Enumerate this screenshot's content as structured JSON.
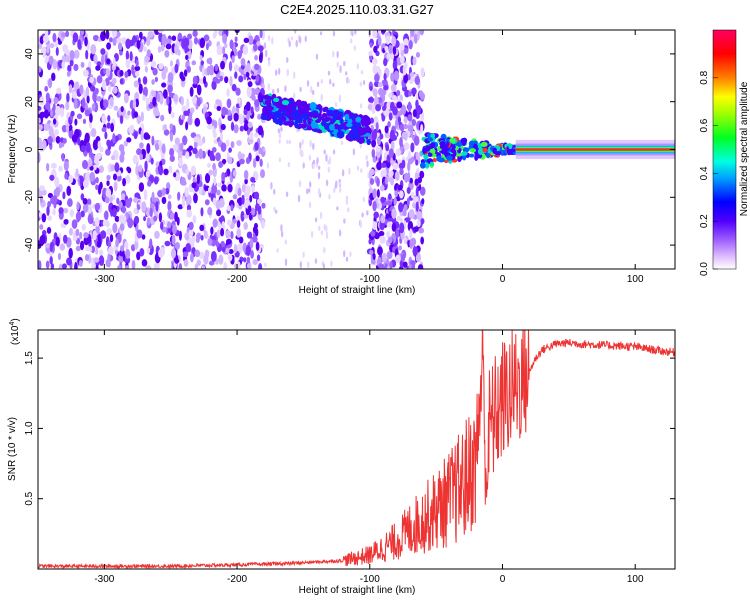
{
  "page_title": "C2E4.2025.110.03.31.G27",
  "chart_data": [
    {
      "type": "heatmap",
      "title": "C2E4.2025.110.03.31.G27",
      "xlabel": "Height of straight line (km)",
      "ylabel": "Frequency (Hz)",
      "xlim": [
        -350,
        130
      ],
      "ylim": [
        -50,
        50
      ],
      "xticks": [
        -300,
        -200,
        -100,
        0,
        100
      ],
      "yticks": [
        -40,
        -20,
        0,
        20,
        40
      ],
      "colorbar": {
        "label": "Normalized spectral amplitude",
        "range": [
          0,
          1
        ],
        "ticks": [
          "0.0",
          "0.2",
          "0.4",
          "0.6",
          "0.8"
        ],
        "tick_values": [
          0.0,
          0.2,
          0.4,
          0.6,
          0.8
        ],
        "colormap": [
          "#ffffff",
          "#c080ff",
          "#6000ff",
          "#0000ff",
          "#00c0ff",
          "#00ff40",
          "#ffff00",
          "#ff8000",
          "#ff0000",
          "#ff0060"
        ]
      },
      "regions": [
        {
          "x": [
            -350,
            -180
          ],
          "freq": [
            -50,
            50
          ],
          "amplitude": 0.15,
          "pattern": "scattered noise"
        },
        {
          "x": [
            -180,
            -95
          ],
          "freq_center": [
            18,
            8
          ],
          "amplitude": 0.5,
          "pattern": "signal band"
        },
        {
          "x": [
            -100,
            -60
          ],
          "freq": [
            -50,
            50
          ],
          "amplitude": 0.2,
          "pattern": "noise band"
        },
        {
          "x": [
            -60,
            10
          ],
          "freq_center": [
            0,
            0
          ],
          "amplitude": 0.6,
          "pattern": "converging signal"
        },
        {
          "x": [
            10,
            130
          ],
          "freq_center": [
            0,
            0
          ],
          "amplitude": 1.0,
          "pattern": "stable carrier"
        }
      ]
    },
    {
      "type": "line",
      "xlabel": "Height of straight line (km)",
      "ylabel": "SNR (10 * v/v)",
      "y_multiplier": "(x10",
      "y_multiplier_exp": "4",
      "y_multiplier_close": ")",
      "xlim": [
        -350,
        130
      ],
      "ylim": [
        0,
        1.7
      ],
      "xticks": [
        -300,
        -200,
        -100,
        0,
        100
      ],
      "yticks": [
        "0.5",
        "1.0",
        "1.5"
      ],
      "ytick_values": [
        0.5,
        1.0,
        1.5
      ],
      "color": "#ee3333",
      "series": [
        {
          "x": [
            -350,
            -300,
            -250,
            -200,
            -160,
            -140,
            -120,
            -100,
            -90,
            -80,
            -70,
            -60,
            -50,
            -40,
            -30,
            -20,
            -15,
            -12,
            -10,
            -5,
            0,
            5,
            10,
            15,
            20,
            25,
            30,
            40,
            50,
            60,
            80,
            100,
            120,
            130
          ],
          "values": [
            0.02,
            0.02,
            0.02,
            0.03,
            0.04,
            0.05,
            0.06,
            0.1,
            0.15,
            0.2,
            0.28,
            0.35,
            0.42,
            0.5,
            0.6,
            0.75,
            1.5,
            0.6,
            1.0,
            1.1,
            1.2,
            1.25,
            1.3,
            1.35,
            1.4,
            1.5,
            1.56,
            1.6,
            1.61,
            1.6,
            1.59,
            1.58,
            1.55,
            1.54
          ]
        }
      ]
    }
  ]
}
